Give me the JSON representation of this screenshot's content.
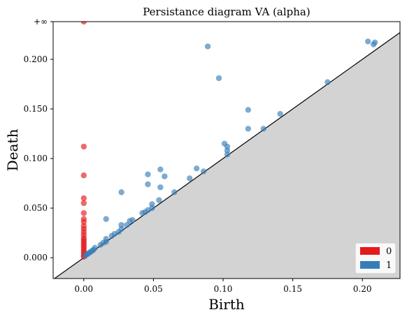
{
  "chart_data": {
    "type": "scatter",
    "title": "Persistance diagram VA (alpha)",
    "xlabel": "Birth",
    "ylabel": "Death",
    "xlim": [
      -0.022,
      0.227
    ],
    "ylim": [
      -0.021,
      0.238
    ],
    "xticks": [
      0.0,
      0.05,
      0.1,
      0.15,
      0.2
    ],
    "xtick_labels": [
      "0.00",
      "0.05",
      "0.10",
      "0.15",
      "0.20"
    ],
    "yticks": [
      0.0,
      0.05,
      0.1,
      0.15,
      0.2
    ],
    "ytick_labels": [
      "0.000",
      "0.050",
      "0.100",
      "0.150",
      "0.200"
    ],
    "infinity_label": "+∞",
    "infinity_value": 0.238,
    "diagonal": true,
    "grid": false,
    "legend_position": "bottom-right",
    "series": [
      {
        "name": "0",
        "color": "#e41a1c",
        "points": [
          [
            0.0,
            "inf"
          ],
          [
            0.0,
            0.112
          ],
          [
            0.0,
            0.083
          ],
          [
            0.0,
            0.06
          ],
          [
            0.0,
            0.055
          ],
          [
            0.0,
            0.045
          ],
          [
            0.0,
            0.039
          ],
          [
            0.0,
            0.036
          ],
          [
            0.0,
            0.032
          ],
          [
            0.0,
            0.029
          ],
          [
            0.0,
            0.026
          ],
          [
            0.0,
            0.023
          ],
          [
            0.0,
            0.02
          ],
          [
            0.0,
            0.018
          ],
          [
            0.0,
            0.016
          ],
          [
            0.0,
            0.014
          ],
          [
            0.0,
            0.012
          ],
          [
            0.0,
            0.01
          ],
          [
            0.0,
            0.008
          ],
          [
            0.0,
            0.006
          ],
          [
            0.0,
            0.004
          ],
          [
            0.0,
            0.002
          ],
          [
            0.0,
            0.001
          ]
        ]
      },
      {
        "name": "1",
        "color": "#377eb8",
        "points": [
          [
            0.089,
            0.213
          ],
          [
            0.097,
            0.181
          ],
          [
            0.204,
            0.218
          ],
          [
            0.208,
            0.215
          ],
          [
            0.209,
            0.217
          ],
          [
            0.175,
            0.177
          ],
          [
            0.118,
            0.149
          ],
          [
            0.141,
            0.145
          ],
          [
            0.118,
            0.13
          ],
          [
            0.129,
            0.13
          ],
          [
            0.101,
            0.115
          ],
          [
            0.103,
            0.112
          ],
          [
            0.103,
            0.108
          ],
          [
            0.103,
            0.104
          ],
          [
            0.081,
            0.09
          ],
          [
            0.086,
            0.087
          ],
          [
            0.055,
            0.089
          ],
          [
            0.046,
            0.084
          ],
          [
            0.058,
            0.082
          ],
          [
            0.076,
            0.08
          ],
          [
            0.046,
            0.074
          ],
          [
            0.055,
            0.071
          ],
          [
            0.065,
            0.066
          ],
          [
            0.027,
            0.066
          ],
          [
            0.054,
            0.058
          ],
          [
            0.049,
            0.054
          ],
          [
            0.049,
            0.05
          ],
          [
            0.046,
            0.048
          ],
          [
            0.044,
            0.046
          ],
          [
            0.042,
            0.045
          ],
          [
            0.016,
            0.039
          ],
          [
            0.035,
            0.038
          ],
          [
            0.033,
            0.037
          ],
          [
            0.027,
            0.033
          ],
          [
            0.031,
            0.033
          ],
          [
            0.027,
            0.029
          ],
          [
            0.025,
            0.026
          ],
          [
            0.022,
            0.024
          ],
          [
            0.02,
            0.022
          ],
          [
            0.016,
            0.019
          ],
          [
            0.014,
            0.015
          ],
          [
            0.016,
            0.016
          ],
          [
            0.012,
            0.013
          ],
          [
            0.008,
            0.01
          ],
          [
            0.007,
            0.008
          ],
          [
            0.006,
            0.007
          ],
          [
            0.005,
            0.006
          ],
          [
            0.004,
            0.005
          ],
          [
            0.003,
            0.004
          ],
          [
            0.002,
            0.003
          ],
          [
            0.001,
            0.002
          ]
        ]
      }
    ]
  }
}
